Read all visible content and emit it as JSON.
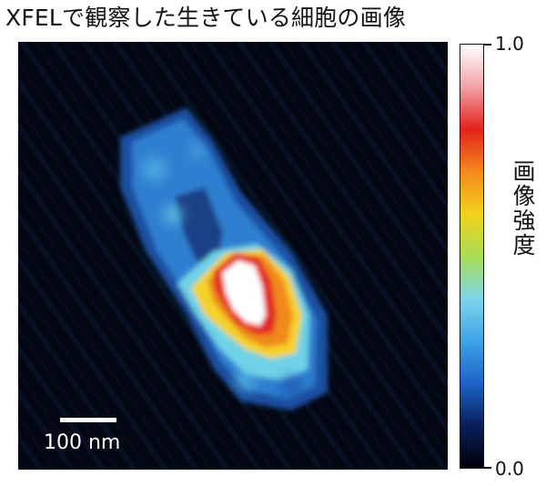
{
  "title": "XFELで観察した生きている細胞の画像",
  "scale_bar": {
    "label": "100 nm"
  },
  "colorbar": {
    "label": "画像強度",
    "max_label": "1.0",
    "min_label": "0.0",
    "colors": [
      "#00000a",
      "#0a1f5a",
      "#1d63c8",
      "#3fa3e6",
      "#7fd6ea",
      "#a8dc54",
      "#f2d21c",
      "#f5881d",
      "#e3221b",
      "#f0a2a8",
      "#ffffff"
    ]
  },
  "image": {
    "colors": {
      "background": "#030711",
      "outer": "#2f77c8",
      "cyan": "#6fd2e6",
      "yellow": "#f5d22b",
      "orange": "#f08a1e",
      "red": "#e32620",
      "white": "#ffffff"
    }
  }
}
